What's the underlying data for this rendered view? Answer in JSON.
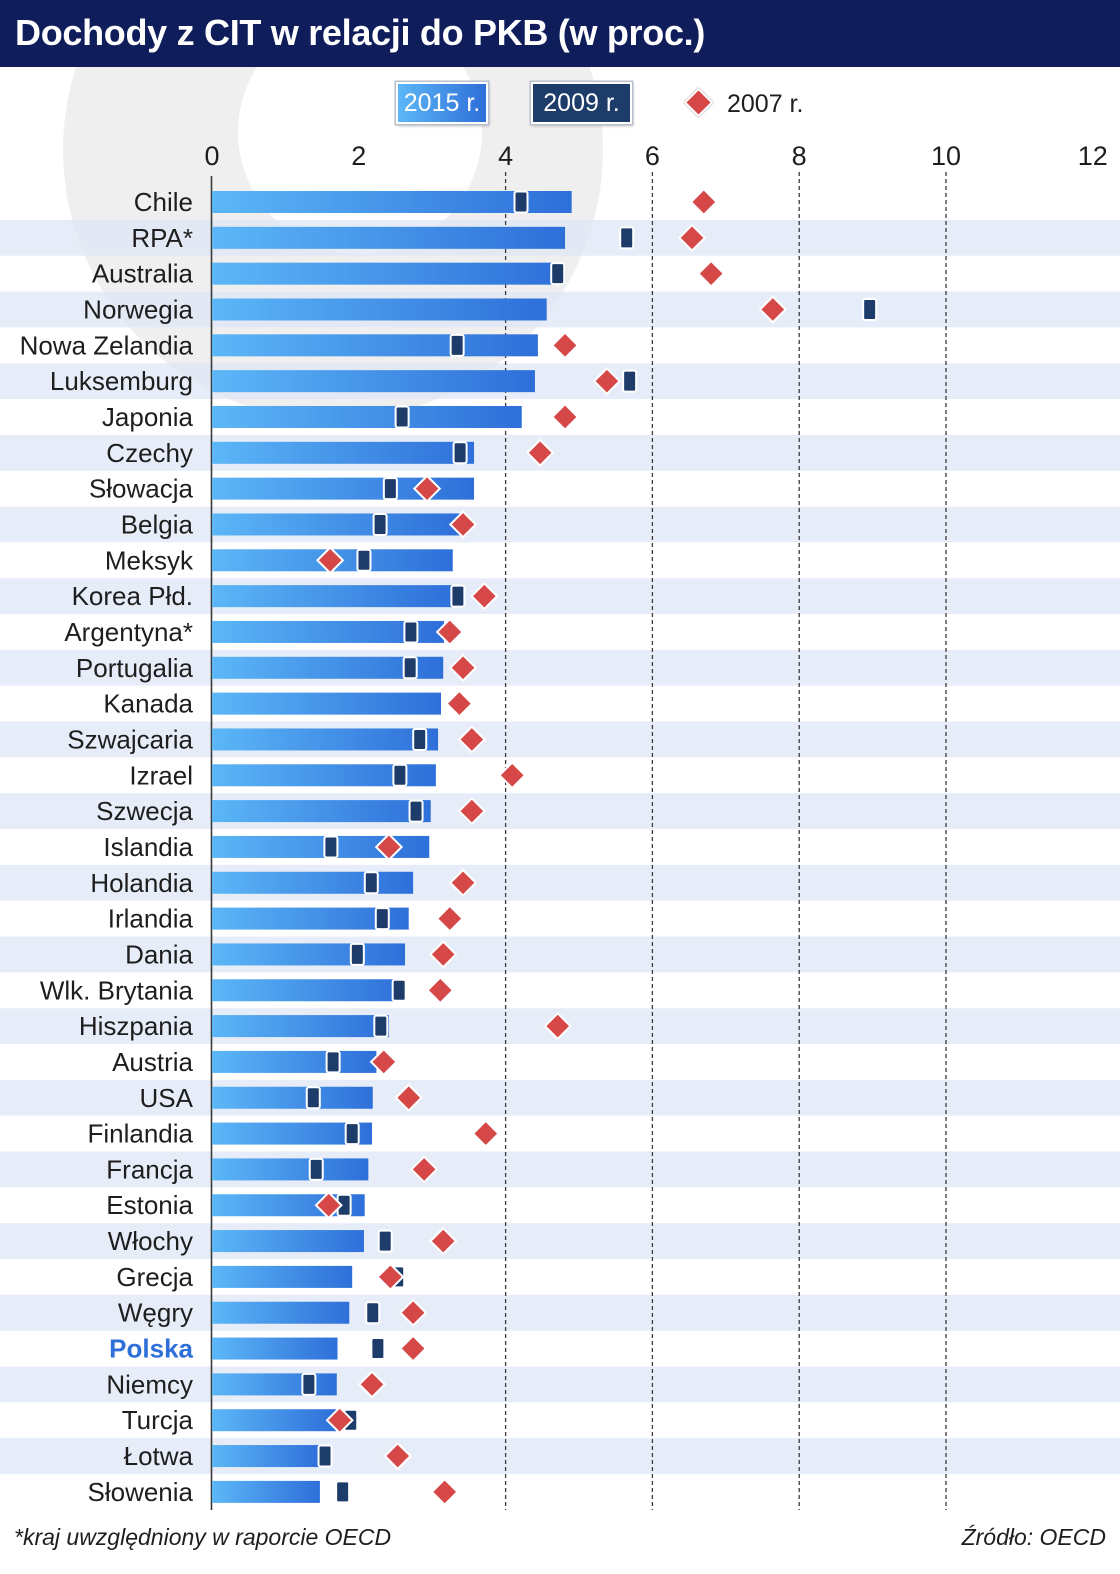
{
  "chart_data": {
    "type": "bar",
    "orientation": "horizontal",
    "title": "Dochody z CIT w relacji do PKB (w proc.)",
    "categories": [
      "Chile",
      "RPA*",
      "Australia",
      "Norwegia",
      "Nowa Zelandia",
      "Luksemburg",
      "Japonia",
      "Czechy",
      "Słowacja",
      "Belgia",
      "Meksyk",
      "Korea Płd.",
      "Argentyna*",
      "Portugalia",
      "Kanada",
      "Szwajcaria",
      "Izrael",
      "Szwecja",
      "Islandia",
      "Holandia",
      "Irlandia",
      "Dania",
      "Wlk. Brytania",
      "Hiszpania",
      "Austria",
      "USA",
      "Finlandia",
      "Francja",
      "Estonia",
      "Włochy",
      "Grecja",
      "Węgry",
      "Polska",
      "Niemcy",
      "Turcja",
      "Łotwa",
      "Słowenia"
    ],
    "series": [
      {
        "name": "2015 r.",
        "marker": "bar",
        "color": "#3a86e6",
        "values": [
          4.9,
          4.81,
          4.8,
          4.56,
          4.44,
          4.4,
          4.22,
          3.57,
          3.57,
          3.38,
          3.28,
          3.27,
          3.16,
          3.15,
          3.12,
          3.08,
          3.05,
          2.98,
          2.96,
          2.74,
          2.68,
          2.63,
          2.62,
          2.41,
          2.24,
          2.19,
          2.18,
          2.13,
          2.08,
          2.07,
          1.91,
          1.87,
          1.71,
          1.7,
          1.69,
          1.47,
          1.47
        ]
      },
      {
        "name": "2009 r.",
        "marker": "rectangle",
        "color": "#1e3c6a",
        "values": [
          4.21,
          5.65,
          4.71,
          8.96,
          3.34,
          5.69,
          2.59,
          3.38,
          2.43,
          2.29,
          2.07,
          3.35,
          2.71,
          2.7,
          null,
          2.83,
          2.56,
          2.78,
          1.62,
          2.17,
          2.32,
          1.98,
          2.55,
          2.3,
          1.65,
          1.38,
          1.91,
          1.42,
          1.8,
          2.36,
          2.53,
          2.19,
          2.26,
          1.32,
          1.89,
          1.54,
          1.78
        ]
      },
      {
        "name": "2007 r.",
        "marker": "diamond",
        "color": "#d64848",
        "values": [
          6.7,
          6.54,
          6.8,
          7.64,
          4.81,
          5.38,
          4.81,
          4.47,
          2.93,
          3.42,
          1.61,
          3.71,
          3.24,
          3.42,
          3.37,
          3.54,
          4.09,
          3.54,
          2.41,
          3.42,
          3.24,
          3.15,
          3.11,
          4.71,
          2.34,
          2.68,
          3.73,
          2.89,
          1.59,
          3.15,
          2.43,
          2.74,
          2.74,
          2.18,
          1.74,
          2.53,
          3.17
        ]
      }
    ],
    "xlim": [
      0,
      12
    ],
    "xticks": [
      0,
      2,
      4,
      6,
      8,
      10,
      12
    ],
    "grid": true,
    "legend_position": "top",
    "highlight": {
      "index": 32,
      "color": "#2f6fd8"
    }
  },
  "footer": {
    "note": "*kraj uwzględniony w raporcie OECD",
    "source": "Źródło: OECD"
  },
  "theme": {
    "header_background": "#101d5b",
    "row_stripe": "#dfe7f5",
    "text": "#1e1e1e"
  }
}
